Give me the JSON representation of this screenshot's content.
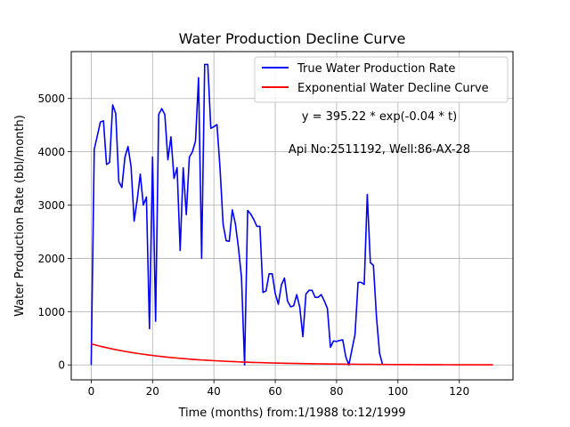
{
  "chart_data": {
    "type": "line",
    "title": "Water Production Decline Curve",
    "xlabel": "Time (months) from:1/1988 to:12/1999",
    "ylabel": "Water Production Rate (bbl/month)",
    "xlim": [
      -6.5,
      137.5
    ],
    "ylim": [
      -280,
      5880
    ],
    "xticks": [
      0,
      20,
      40,
      60,
      80,
      100,
      120
    ],
    "yticks": [
      0,
      1000,
      2000,
      3000,
      4000,
      5000
    ],
    "grid": true,
    "legend_position": "upper right",
    "annotations": [
      "y = 395.22 * exp(-0.04 * t)",
      "Api No:2511192, Well:86-AX-28"
    ],
    "series": [
      {
        "name": "True Water Production Rate",
        "color": "#0000ff",
        "x": [
          0,
          1,
          2,
          3,
          4,
          5,
          6,
          7,
          8,
          9,
          10,
          11,
          12,
          13,
          14,
          15,
          16,
          17,
          18,
          19,
          20,
          21,
          22,
          23,
          24,
          25,
          26,
          27,
          28,
          29,
          30,
          31,
          32,
          33,
          34,
          35,
          36,
          37,
          38,
          39,
          40,
          41,
          42,
          43,
          44,
          45,
          46,
          47,
          48,
          49,
          50,
          51,
          52,
          53,
          54,
          55,
          56,
          57,
          58,
          59,
          60,
          61,
          62,
          63,
          64,
          65,
          66,
          67,
          68,
          69,
          70,
          71,
          72,
          73,
          74,
          75,
          76,
          77,
          78,
          79,
          80,
          81,
          82,
          83,
          84,
          85,
          86,
          87,
          88,
          89,
          90,
          91,
          92,
          93,
          94,
          95
        ],
        "y": [
          0,
          4050,
          4300,
          4560,
          4580,
          3760,
          3800,
          4880,
          4720,
          3440,
          3330,
          3900,
          4100,
          3720,
          2700,
          3100,
          3580,
          3000,
          3150,
          680,
          3900,
          820,
          4700,
          4810,
          4700,
          3850,
          4280,
          3500,
          3700,
          2150,
          3700,
          2820,
          3900,
          4000,
          4200,
          5390,
          2000,
          5640,
          5640,
          4440,
          4470,
          4510,
          3690,
          2640,
          2330,
          2320,
          2910,
          2650,
          2200,
          1640,
          0,
          2900,
          2830,
          2730,
          2600,
          2600,
          1360,
          1390,
          1710,
          1710,
          1340,
          1140,
          1500,
          1630,
          1200,
          1090,
          1110,
          1320,
          1080,
          530,
          1330,
          1400,
          1400,
          1270,
          1270,
          1320,
          1200,
          1060,
          330,
          450,
          440,
          460,
          470,
          150,
          0,
          290,
          570,
          1550,
          1550,
          1510,
          3200,
          1920,
          1870,
          900,
          220,
          0
        ]
      },
      {
        "name": "Exponential Water Decline Curve",
        "color": "#ff0000",
        "fit": {
          "a": 395.22,
          "b": -0.04
        },
        "x_range": [
          0,
          131
        ]
      }
    ]
  }
}
